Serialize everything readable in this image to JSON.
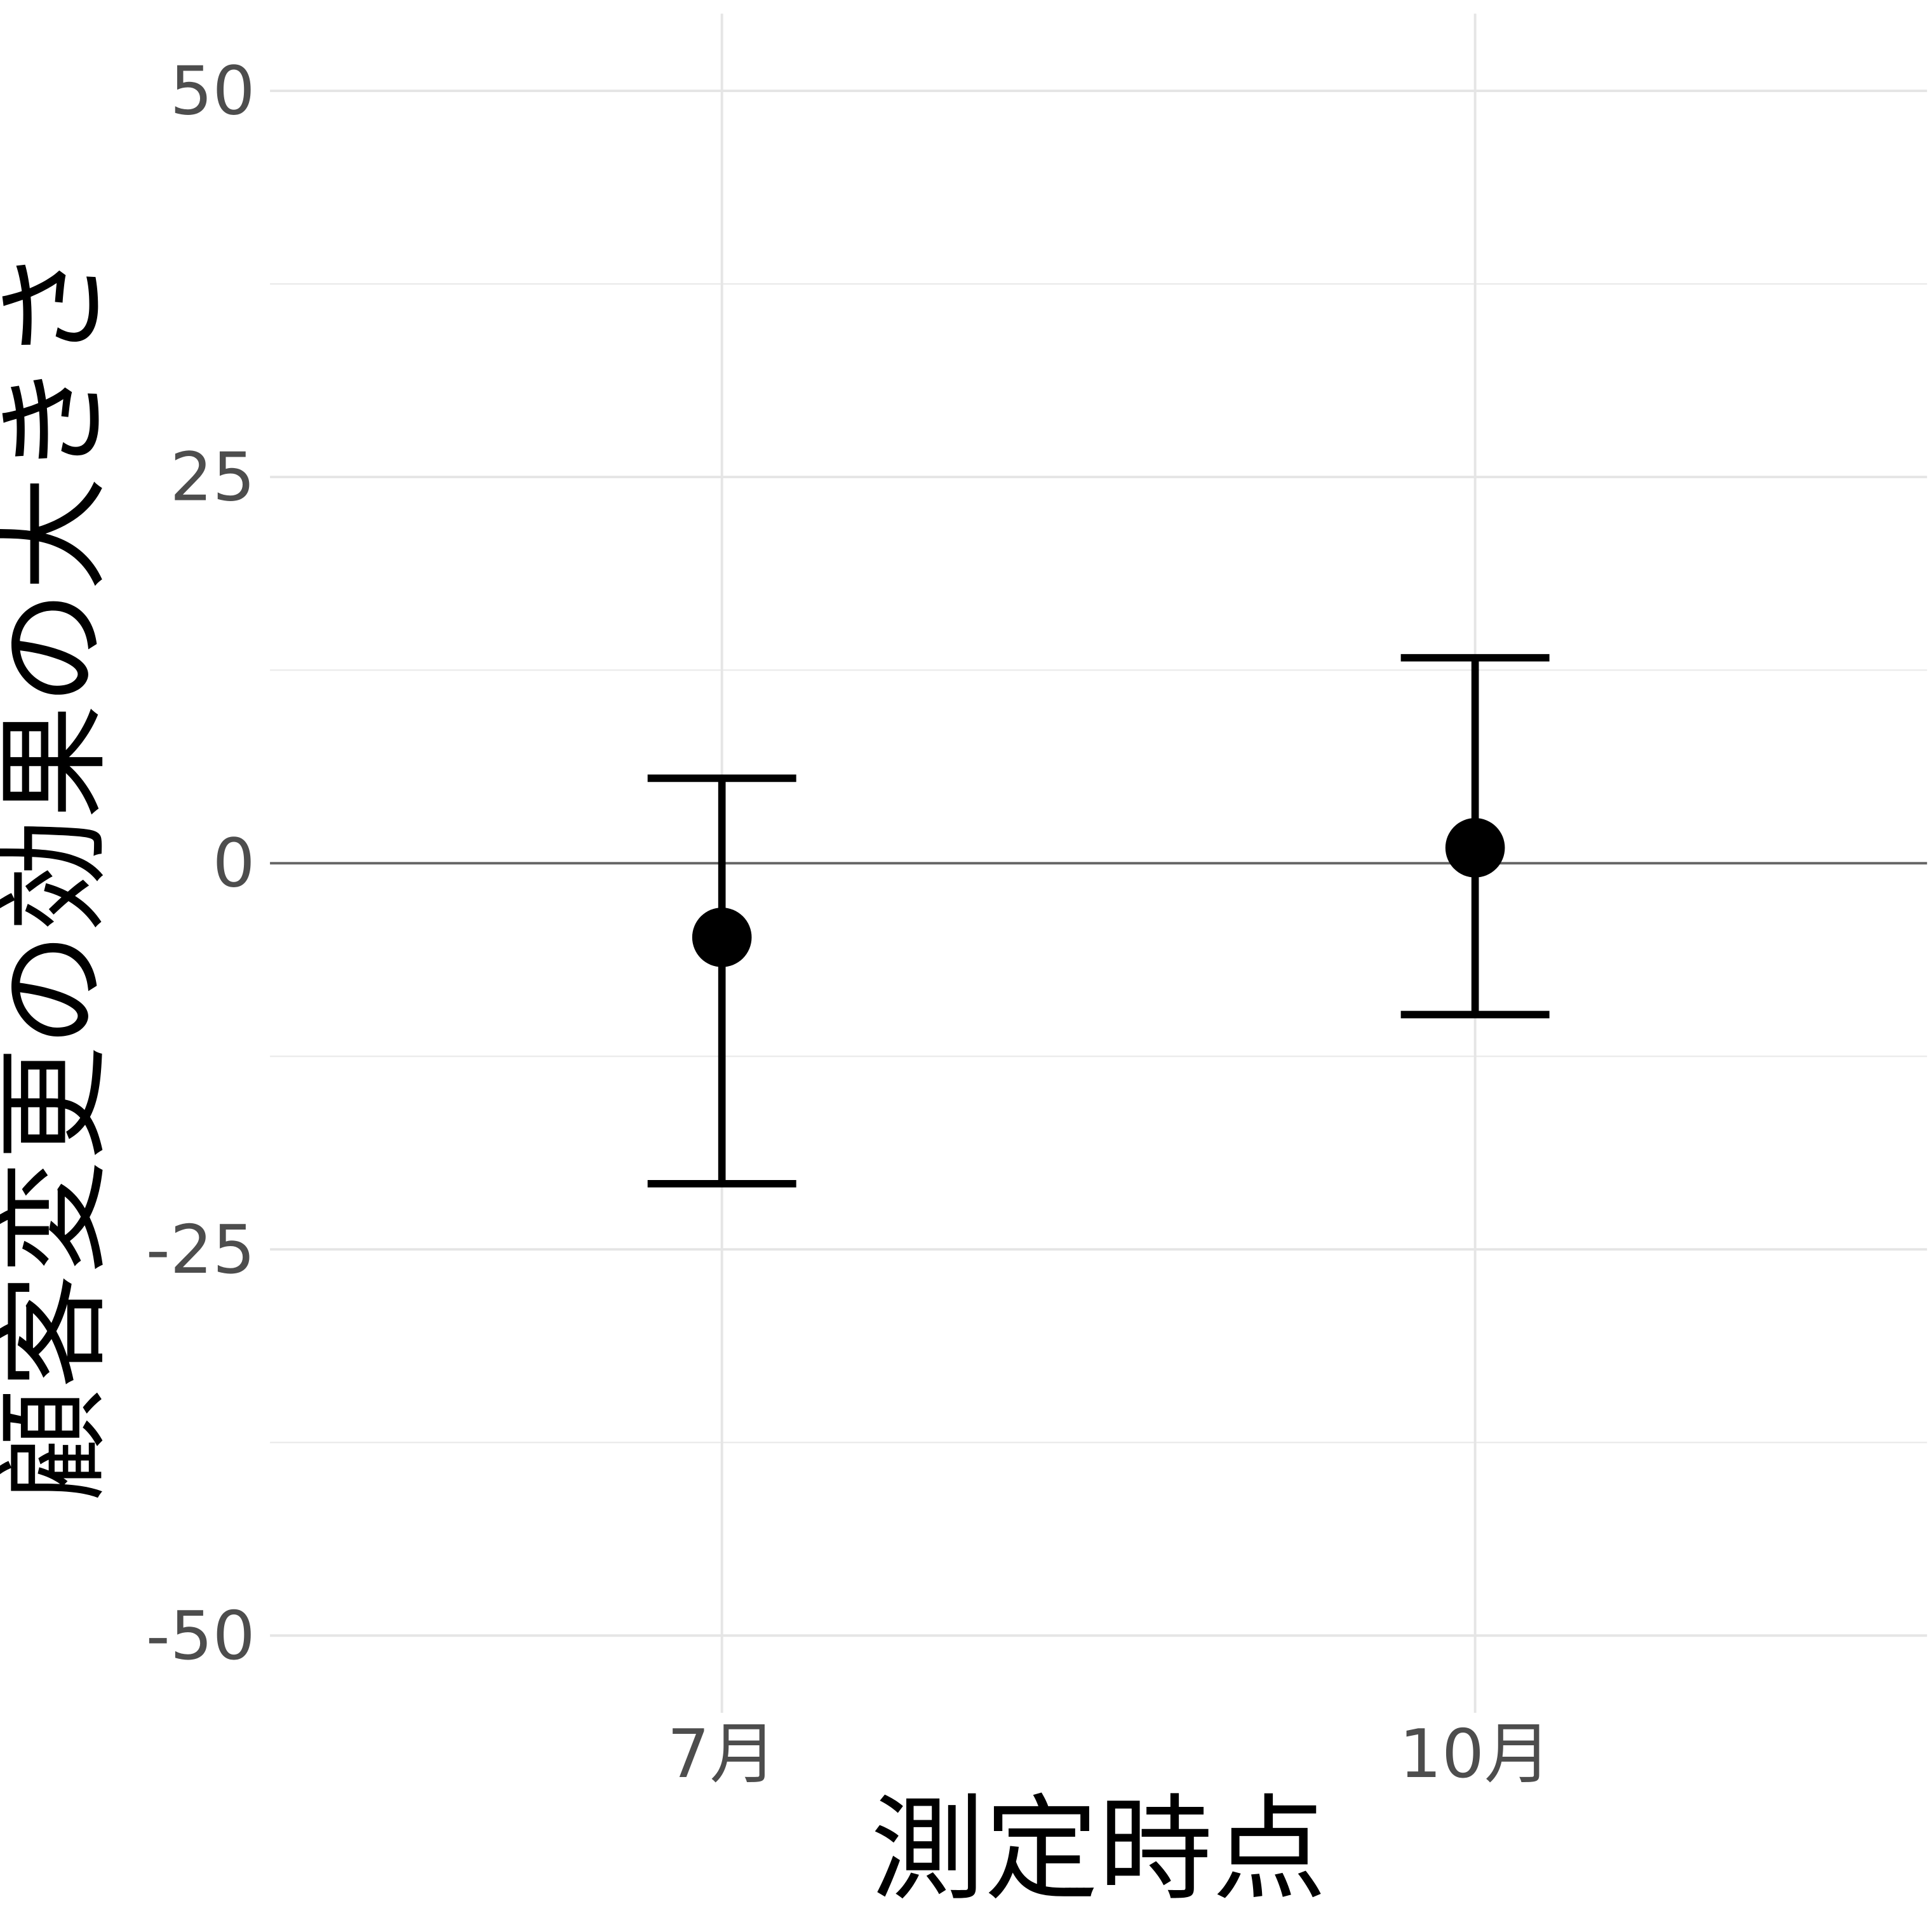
{
  "chart_data": {
    "type": "errorbar",
    "x_label": "測定時点",
    "y_label": "顧客変更の効果の大きさ",
    "categories": [
      "7月",
      "10月"
    ],
    "values": [
      -4.8,
      1.0
    ],
    "lower": [
      -20.75,
      -9.8
    ],
    "upper": [
      5.5,
      13.3
    ],
    "color": "#000000",
    "ylim": [
      -55,
      55
    ],
    "yticks": [
      -50,
      -25,
      0,
      25,
      50
    ],
    "minor_yticks": [
      -37.5,
      -12.5,
      12.5,
      37.5
    ],
    "hline": 0,
    "grid": true
  }
}
